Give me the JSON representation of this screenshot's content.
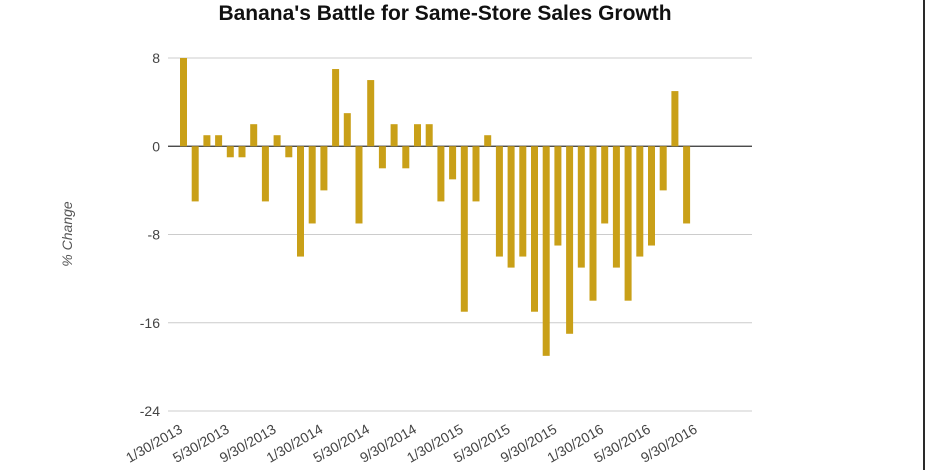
{
  "chart_data": {
    "type": "bar",
    "title": "Banana's Battle for Same-Store Sales Growth",
    "ylabel": "% Change",
    "xlabel": "",
    "ylim": [
      -24,
      8
    ],
    "yticks": [
      8,
      0,
      -8,
      -16,
      -24
    ],
    "grid": true,
    "legend": "none",
    "bar_color": "#c9a018",
    "x_tick_labels": [
      "1/30/2013",
      "5/30/2013",
      "9/30/2013",
      "1/30/2014",
      "5/30/2014",
      "9/30/2014",
      "1/30/2015",
      "5/30/2015",
      "9/30/2015",
      "1/30/2016",
      "5/30/2016",
      "9/30/2016"
    ],
    "values": [
      8,
      -5,
      1,
      1,
      -1,
      -1,
      2,
      -5,
      1,
      -1,
      -10,
      -7,
      -4,
      7,
      3,
      -7,
      6,
      -2,
      2,
      -2,
      2,
      2,
      -5,
      -3,
      -15,
      -5,
      1,
      -10,
      -11,
      -10,
      -15,
      -19,
      -9,
      -17,
      -11,
      -14,
      -7,
      -11,
      -14,
      -10,
      -9,
      -4,
      5,
      -7
    ]
  }
}
